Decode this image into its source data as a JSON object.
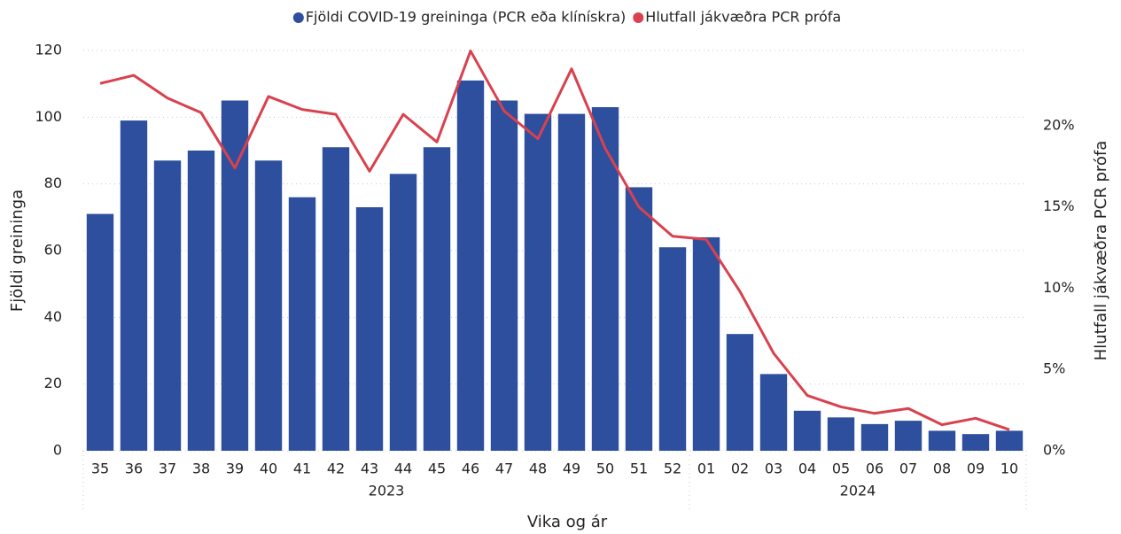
{
  "chart_data": {
    "type": "bar",
    "x_title": "Vika og ár",
    "y_title": "Fjöldi greininga",
    "y2_title": "Hlutfall jákvæðra PCR prófa",
    "categories": [
      "35",
      "36",
      "37",
      "38",
      "39",
      "40",
      "41",
      "42",
      "43",
      "44",
      "45",
      "46",
      "47",
      "48",
      "49",
      "50",
      "51",
      "52",
      "01",
      "02",
      "03",
      "04",
      "05",
      "06",
      "07",
      "08",
      "09",
      "10"
    ],
    "x_groups": [
      {
        "label": "2023",
        "count": 18
      },
      {
        "label": "2024",
        "count": 10
      }
    ],
    "series": [
      {
        "name": "Fjöldi COVID-19 greininga (PCR eða klínískra)",
        "type": "bar",
        "color": "#2e4f9e",
        "values": [
          71,
          99,
          87,
          90,
          105,
          87,
          76,
          91,
          73,
          83,
          91,
          111,
          105,
          101,
          101,
          103,
          79,
          61,
          64,
          35,
          23,
          12,
          10,
          8,
          9,
          6,
          5,
          6
        ]
      },
      {
        "name": "Hlutfall jákvæðra PCR prófa",
        "type": "line",
        "axis": "y2",
        "color": "#d9414e",
        "values": [
          22.6,
          23.1,
          21.7,
          20.8,
          17.4,
          21.8,
          21.0,
          20.7,
          17.2,
          20.7,
          19.0,
          24.6,
          20.9,
          19.2,
          23.5,
          18.6,
          15.0,
          13.2,
          13.0,
          9.8,
          6.0,
          3.4,
          2.7,
          2.3,
          2.6,
          1.6,
          2.0,
          1.3
        ]
      }
    ],
    "ylim": [
      0,
      120
    ],
    "yticks": [
      0,
      20,
      40,
      60,
      80,
      100,
      120
    ],
    "y2lim": [
      0,
      24.63
    ],
    "y2ticks": [
      {
        "value": 0,
        "label": "0%"
      },
      {
        "value": 5,
        "label": "5%"
      },
      {
        "value": 10,
        "label": "10%"
      },
      {
        "value": 15,
        "label": "15%"
      },
      {
        "value": 20,
        "label": "20%"
      }
    ],
    "grid": true,
    "legend": "top"
  }
}
